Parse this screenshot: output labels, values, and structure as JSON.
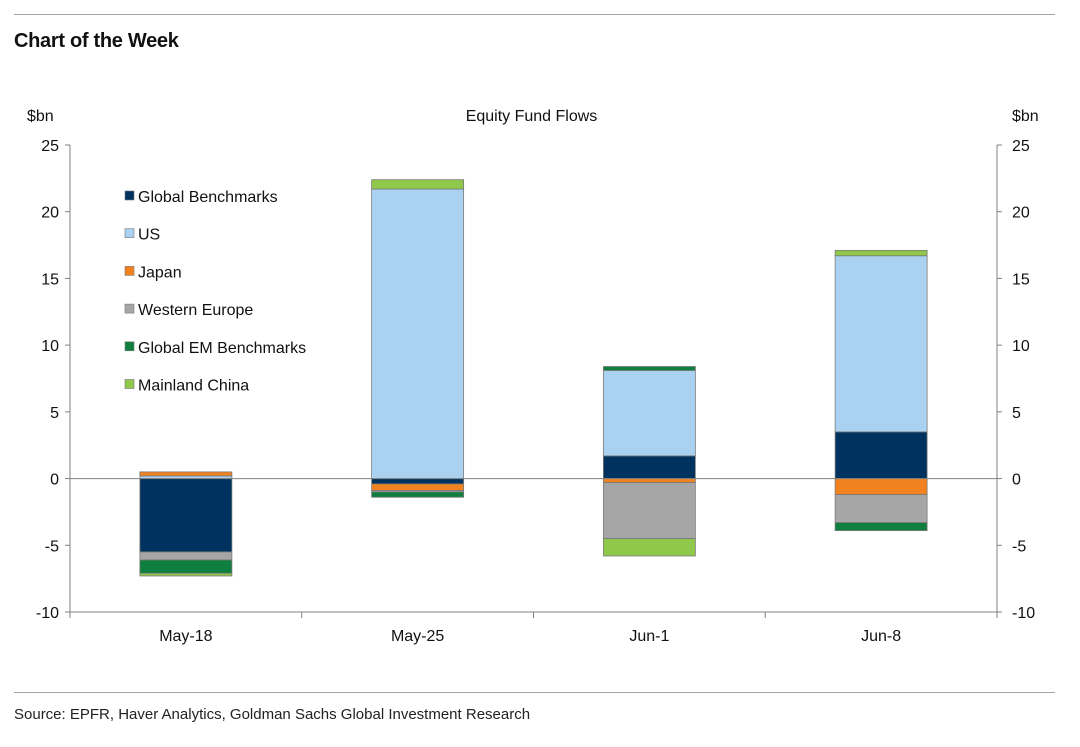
{
  "header": {
    "title": "Chart of the Week"
  },
  "footer": {
    "source": "Source: EPFR, Haver Analytics, Goldman Sachs Global Investment Research"
  },
  "colors": {
    "global_benchmarks": "#00325f",
    "us": "#aad1ef",
    "japan": "#f2821f",
    "western_europe": "#a6a6a6",
    "global_em_benchmarks": "#0f7f3f",
    "mainland_china": "#8fc84a",
    "bar_outline": "#7a7a7a",
    "axis": "#808080"
  },
  "chart_data": {
    "type": "bar",
    "stacked": true,
    "title": "Equity Fund Flows",
    "ylabel_left": "$bn",
    "ylabel_right": "$bn",
    "ylim": [
      -10,
      25
    ],
    "yticks": [
      25,
      20,
      15,
      10,
      5,
      0,
      -5,
      -10
    ],
    "categories": [
      "May-18",
      "May-25",
      "Jun-1",
      "Jun-8"
    ],
    "legend_position": "top-left",
    "grid": false,
    "series": [
      {
        "name": "Global Benchmarks",
        "color_key": "global_benchmarks",
        "values": [
          -5.5,
          -0.4,
          1.7,
          3.5
        ]
      },
      {
        "name": "US",
        "color_key": "us",
        "values": [
          0.2,
          21.7,
          6.4,
          13.2
        ]
      },
      {
        "name": "Japan",
        "color_key": "japan",
        "values": [
          0.3,
          -0.5,
          -0.3,
          -1.2
        ]
      },
      {
        "name": "Western Europe",
        "color_key": "western_europe",
        "values": [
          -0.6,
          -0.1,
          -4.2,
          -2.1
        ]
      },
      {
        "name": "Global EM Benchmarks",
        "color_key": "global_em_benchmarks",
        "values": [
          -1.0,
          -0.4,
          0.3,
          -0.6
        ]
      },
      {
        "name": "Mainland China",
        "color_key": "mainland_china",
        "values": [
          -0.2,
          0.7,
          -1.3,
          0.4
        ]
      }
    ]
  }
}
